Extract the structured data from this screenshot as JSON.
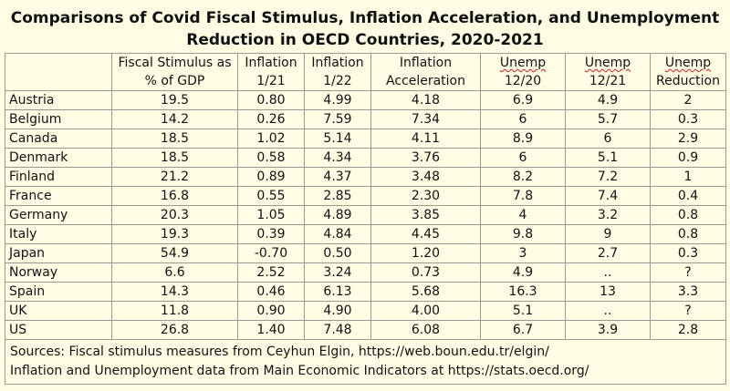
{
  "title": {
    "line1": "Comparisons of Covid Fiscal Stimulus, Inflation Acceleration, and Unemployment",
    "line2": "Reduction in OECD Countries, 2020-2021"
  },
  "columns": [
    {
      "top": "",
      "bottom": ""
    },
    {
      "top": "Fiscal Stimulus as",
      "bottom": "% of GDP"
    },
    {
      "top": "Inflation",
      "bottom": "1/21"
    },
    {
      "top": "Inflation",
      "bottom": "1/22"
    },
    {
      "top": "Inflation",
      "bottom": "Acceleration"
    },
    {
      "top": "Unemp",
      "bottom": "12/20"
    },
    {
      "top": "Unemp",
      "bottom": "12/21"
    },
    {
      "top": "Unemp",
      "bottom": "Reduction"
    }
  ],
  "rows": [
    [
      "Austria",
      "19.5",
      "0.80",
      "4.99",
      "4.18",
      "6.9",
      "4.9",
      "2"
    ],
    [
      "Belgium",
      "14.2",
      "0.26",
      "7.59",
      "7.34",
      "6",
      "5.7",
      "0.3"
    ],
    [
      "Canada",
      "18.5",
      "1.02",
      "5.14",
      "4.11",
      "8.9",
      "6",
      "2.9"
    ],
    [
      "Denmark",
      "18.5",
      "0.58",
      "4.34",
      "3.76",
      "6",
      "5.1",
      "0.9"
    ],
    [
      "Finland",
      "21.2",
      "0.89",
      "4.37",
      "3.48",
      "8.2",
      "7.2",
      "1"
    ],
    [
      "France",
      "16.8",
      "0.55",
      "2.85",
      "2.30",
      "7.8",
      "7.4",
      "0.4"
    ],
    [
      "Germany",
      "20.3",
      "1.05",
      "4.89",
      "3.85",
      "4",
      "3.2",
      "0.8"
    ],
    [
      "Italy",
      "19.3",
      "0.39",
      "4.84",
      "4.45",
      "9.8",
      "9",
      "0.8"
    ],
    [
      "Japan",
      "54.9",
      "-0.70",
      "0.50",
      "1.20",
      "3",
      "2.7",
      "0.3"
    ],
    [
      "Norway",
      "6.6",
      "2.52",
      "3.24",
      "0.73",
      "4.9",
      "..",
      "?"
    ],
    [
      "Spain",
      "14.3",
      "0.46",
      "6.13",
      "5.68",
      "16.3",
      "13",
      "3.3"
    ],
    [
      "UK",
      "11.8",
      "0.90",
      "4.90",
      "4.00",
      "5.1",
      "..",
      "?"
    ],
    [
      "US",
      "26.8",
      "1.40",
      "7.48",
      "6.08",
      "6.7",
      "3.9",
      "2.8"
    ]
  ],
  "sources": {
    "line1": "Sources: Fiscal stimulus measures from Ceyhun Elgin, https://web.boun.edu.tr/elgin/",
    "line2": "Inflation and Unemployment data from Main Economic Indicators at https://stats.oecd.org/"
  }
}
